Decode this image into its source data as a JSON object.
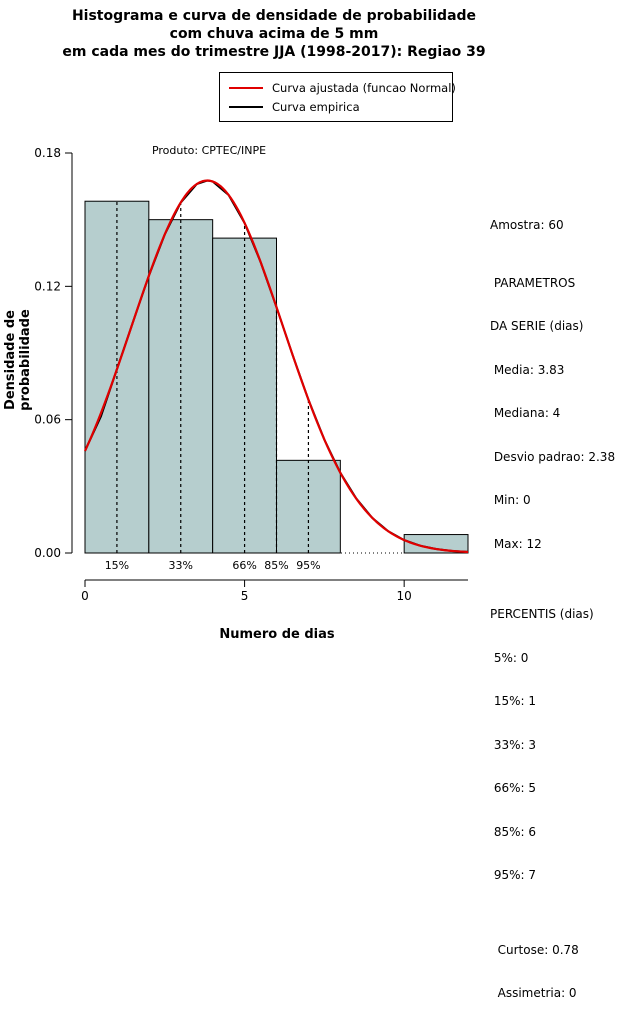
{
  "title": {
    "line1": "Histograma e curva de densidade de probabilidade",
    "line2": "com chuva acima de 5 mm",
    "line3": "em cada mes do trimestre JJA (1998-2017): Regiao 39"
  },
  "legend": {
    "items": [
      {
        "label": "Curva ajustada (funcao Normal)",
        "color": "#e00000"
      },
      {
        "label": "Curva empirica",
        "color": "#000000"
      }
    ]
  },
  "axes": {
    "x_label": "Numero de dias",
    "y_label": "Densidade de probabilidade"
  },
  "stats_panel": {
    "lines": [
      "Amostra: 60",
      " PARAMETROS",
      "DA SERIE (dias)",
      " Media: 3.83",
      " Mediana: 4",
      " Desvio padrao: 2.38",
      " Min: 0",
      " Max: 12",
      "PERCENTIS (dias)",
      " 5%: 0",
      " 15%: 1",
      " 33%: 3",
      " 66%: 5",
      " 85%: 6",
      " 95%: 7",
      "  Curtose: 0.78",
      "  Assimetria: 0"
    ]
  },
  "chart_data": {
    "type": "bar",
    "subtype": "histogram-with-density-curves",
    "title": "Histograma e curva de densidade de probabilidade com chuva acima de 5 mm em cada mes do trimestre JJA (1998-2017): Regiao 39",
    "xlabel": "Numero de dias",
    "ylabel": "Densidade de probabilidade",
    "xlim": [
      0,
      12
    ],
    "ylim": [
      0,
      0.18
    ],
    "x_ticks": [
      0,
      5,
      10
    ],
    "y_ticks": [
      0,
      0.06,
      0.12,
      0.18
    ],
    "y_tick_labels": [
      "0.00",
      "0.06",
      "0.12",
      "0.18"
    ],
    "annotation": "Produto: CPTEC/INPE",
    "histogram": {
      "bin_edges": [
        0,
        2,
        4,
        6,
        8,
        10,
        12
      ],
      "densities": [
        0.1583,
        0.15,
        0.1417,
        0.0417,
        0,
        0.0083
      ],
      "fill": "#b6cece"
    },
    "normal_curve": {
      "label": "Curva ajustada (funcao Normal)",
      "mean": 3.83,
      "sd": 2.38,
      "color": "#e00000"
    },
    "empirical_curve": {
      "label": "Curva empirica",
      "color": "#000000",
      "points": [
        [
          0,
          0.046
        ],
        [
          0.5,
          0.0615
        ],
        [
          1,
          0.0827
        ],
        [
          1.5,
          0.1038
        ],
        [
          2,
          0.1247
        ],
        [
          2.5,
          0.1434
        ],
        [
          3,
          0.1577
        ],
        [
          3.5,
          0.166
        ],
        [
          3.83,
          0.1676
        ],
        [
          4,
          0.1672
        ],
        [
          4.5,
          0.1611
        ],
        [
          5,
          0.1485
        ],
        [
          5.5,
          0.131
        ],
        [
          6,
          0.1106
        ],
        [
          6.5,
          0.0893
        ],
        [
          7,
          0.069
        ],
        [
          7.5,
          0.051
        ],
        [
          8,
          0.0361
        ],
        [
          8.5,
          0.0245
        ],
        [
          9,
          0.0158
        ],
        [
          9.5,
          0.0098
        ],
        [
          10,
          0.0058
        ],
        [
          10.5,
          0.0033
        ],
        [
          11,
          0.0018
        ],
        [
          11.5,
          0.0009
        ],
        [
          12,
          0.0005
        ]
      ]
    },
    "percentile_lines": [
      {
        "label": "15%",
        "x": 1,
        "top": 0.158
      },
      {
        "label": "33%",
        "x": 3,
        "top": 0.157
      },
      {
        "label": "66%",
        "x": 5,
        "top": 0.148
      },
      {
        "label": "85%",
        "x": 6,
        "top": 0.112
      },
      {
        "label": "95%",
        "x": 7,
        "top": 0.069
      }
    ],
    "statistics": {
      "amostra": 60,
      "media": 3.83,
      "mediana": 4,
      "desvio_padrao": 2.38,
      "min": 0,
      "max": 12,
      "percentis": {
        "5": 0,
        "15": 1,
        "33": 3,
        "66": 5,
        "85": 6,
        "95": 7
      },
      "curtose": 0.78,
      "assimetria": 0
    }
  }
}
